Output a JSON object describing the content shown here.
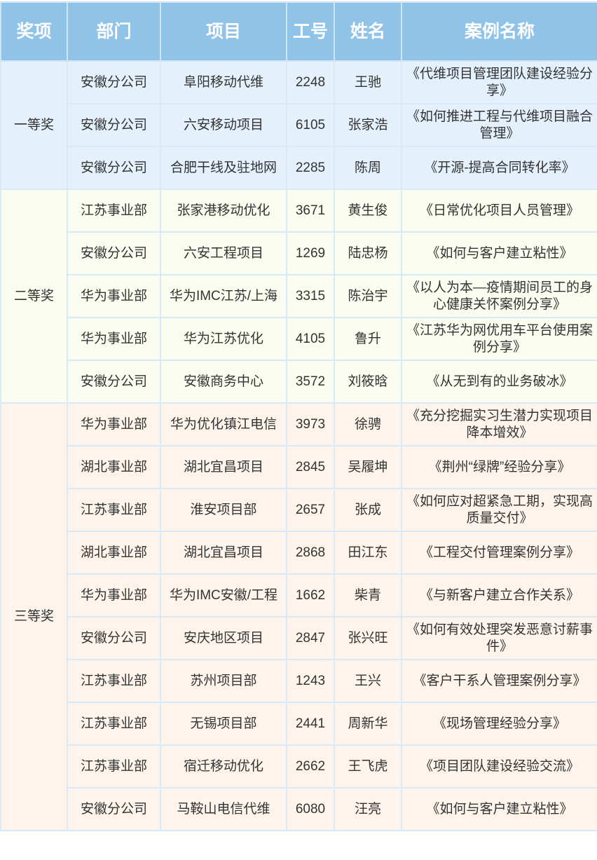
{
  "header": {
    "award": "奖项",
    "dept": "部门",
    "project": "项目",
    "id": "工号",
    "name": "姓名",
    "case": "案例名称"
  },
  "colors": {
    "header_bg": "#8fc3e8",
    "first_prize_bg": "#e4f1fc",
    "second_prize_bg": "#fbfdf0",
    "third_prize_bg": "#fef4ec"
  },
  "groups": [
    {
      "award": "一等奖",
      "rows": [
        {
          "dept": "安徽分公司",
          "project": "阜阳移动代维",
          "id": "2248",
          "name": "王驰",
          "case": "《代维项目管理团队建设经验分享》"
        },
        {
          "dept": "安徽分公司",
          "project": "六安移动项目",
          "id": "6105",
          "name": "张家浩",
          "case": "《如何推进工程与代维项目融合管理》"
        },
        {
          "dept": "安徽分公司",
          "project": "合肥干线及驻地网",
          "id": "2285",
          "name": "陈周",
          "case": "《开源-提高合同转化率》"
        }
      ]
    },
    {
      "award": "二等奖",
      "rows": [
        {
          "dept": "江苏事业部",
          "project": "张家港移动优化",
          "id": "3671",
          "name": "黄生俊",
          "case": "《日常优化项目人员管理》"
        },
        {
          "dept": "安徽分公司",
          "project": "六安工程项目",
          "id": "1269",
          "name": "陆忠杨",
          "case": "《如何与客户建立粘性》"
        },
        {
          "dept": "华为事业部",
          "project": "华为IMC江苏/上海",
          "id": "3315",
          "name": "陈治宇",
          "case": "《以人为本—疫情期间员工的身心健康关怀案例分享》"
        },
        {
          "dept": "华为事业部",
          "project": "华为江苏优化",
          "id": "4105",
          "name": "鲁升",
          "case": "《江苏华为网优用车平台使用案例分享》"
        },
        {
          "dept": "安徽分公司",
          "project": "安徽商务中心",
          "id": "3572",
          "name": "刘筱晗",
          "case": "《从无到有的业务破冰》"
        }
      ]
    },
    {
      "award": "三等奖",
      "rows": [
        {
          "dept": "华为事业部",
          "project": "华为优化镇江电信",
          "id": "3973",
          "name": "徐骋",
          "case": "《充分挖掘实习生潜力实现项目降本增效》"
        },
        {
          "dept": "湖北事业部",
          "project": "湖北宜昌项目",
          "id": "2845",
          "name": "吴履坤",
          "case": "《荆州“绿牌”经验分享》"
        },
        {
          "dept": "江苏事业部",
          "project": "淮安项目部",
          "id": "2657",
          "name": "张成",
          "case": "《如何应对超紧急工期，实现高质量交付》"
        },
        {
          "dept": "湖北事业部",
          "project": "湖北宜昌项目",
          "id": "2868",
          "name": "田江东",
          "case": "《工程交付管理案例分享》"
        },
        {
          "dept": "华为事业部",
          "project": "华为IMC安徽/工程",
          "id": "1662",
          "name": "柴青",
          "case": "《与新客户建立合作关系》"
        },
        {
          "dept": "安徽分公司",
          "project": "安庆地区项目",
          "id": "2847",
          "name": "张兴旺",
          "case": "《如何有效处理突发恶意讨薪事件》"
        },
        {
          "dept": "江苏事业部",
          "project": "苏州项目部",
          "id": "1243",
          "name": "王兴",
          "case": "《客户干系人管理案例分享》"
        },
        {
          "dept": "江苏事业部",
          "project": "无锡项目部",
          "id": "2441",
          "name": "周新华",
          "case": "《现场管理经验分享》"
        },
        {
          "dept": "江苏事业部",
          "project": "宿迁移动优化",
          "id": "2662",
          "name": "王飞虎",
          "case": "《项目团队建设经验交流》"
        },
        {
          "dept": "安徽分公司",
          "project": "马鞍山电信代维",
          "id": "6080",
          "name": "汪亮",
          "case": "《如何与客户建立粘性》"
        }
      ]
    }
  ]
}
